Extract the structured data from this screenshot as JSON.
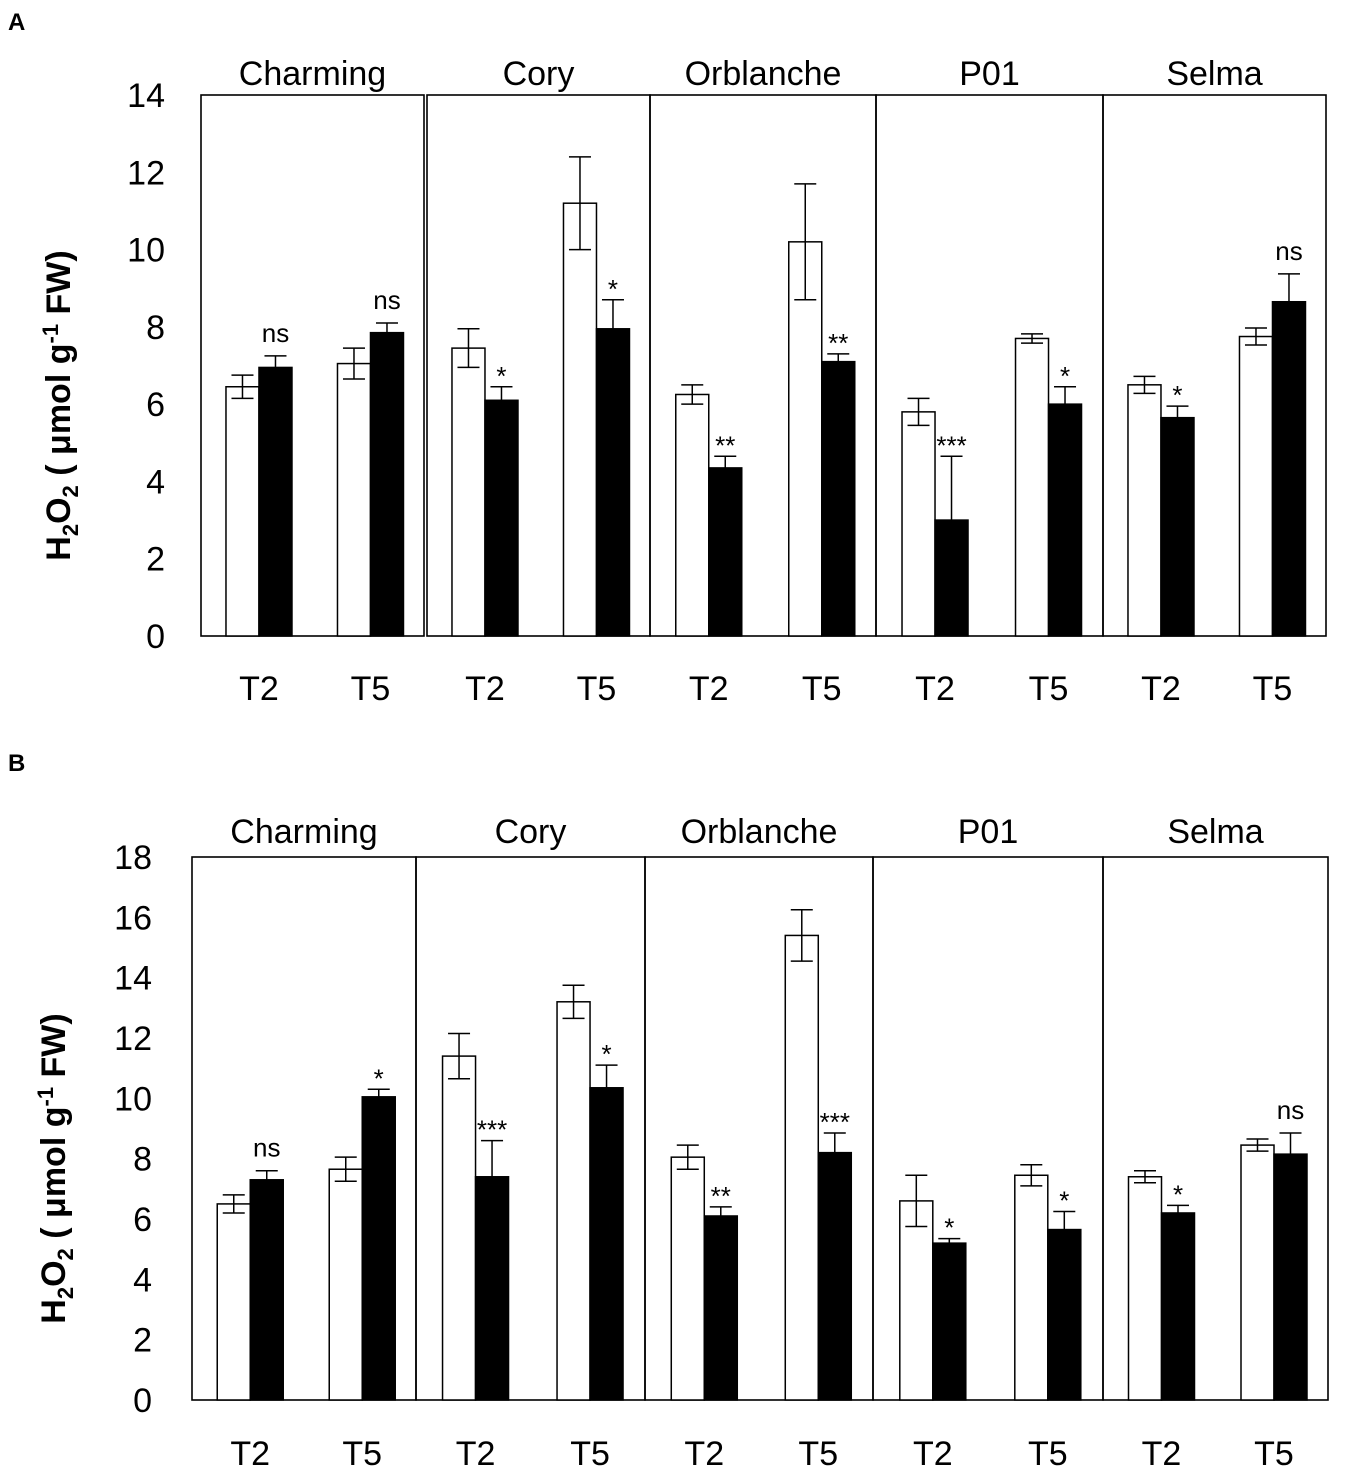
{
  "chart_data": [
    {
      "panel": "A",
      "type": "bar",
      "ylabel_main": "H2O2",
      "ylabel_unit": "( μmol g-1 FW)",
      "ylim": [
        0,
        14
      ],
      "yticks": [
        0,
        2,
        4,
        6,
        8,
        10,
        12,
        14
      ],
      "grid": false,
      "groups": [
        {
          "variety": "Charming",
          "timepoints": [
            {
              "label": "T2",
              "white": 6.45,
              "white_err": 0.3,
              "black": 6.95,
              "black_err": 0.3,
              "sig": "ns"
            },
            {
              "label": "T5",
              "white": 7.05,
              "white_err": 0.4,
              "black": 7.85,
              "black_err": 0.25,
              "sig": "ns"
            }
          ]
        },
        {
          "variety": "Cory",
          "timepoints": [
            {
              "label": "T2",
              "white": 7.45,
              "white_err": 0.5,
              "black": 6.1,
              "black_err": 0.35,
              "sig": "*"
            },
            {
              "label": "T5",
              "white": 11.2,
              "white_err": 1.2,
              "black": 7.95,
              "black_err": 0.75,
              "sig": "*"
            }
          ]
        },
        {
          "variety": "Orblanche",
          "timepoints": [
            {
              "label": "T2",
              "white": 6.25,
              "white_err": 0.25,
              "black": 4.35,
              "black_err": 0.3,
              "sig": "**"
            },
            {
              "label": "T5",
              "white": 10.2,
              "white_err": 1.5,
              "black": 7.1,
              "black_err": 0.2,
              "sig": "**"
            }
          ]
        },
        {
          "variety": "P01",
          "timepoints": [
            {
              "label": "T2",
              "white": 5.8,
              "white_err": 0.35,
              "black": 3.0,
              "black_err": 1.65,
              "sig": "***"
            },
            {
              "label": "T5",
              "white": 7.7,
              "white_err": 0.12,
              "black": 6.0,
              "black_err": 0.45,
              "sig": "*"
            }
          ]
        },
        {
          "variety": "Selma",
          "timepoints": [
            {
              "label": "T2",
              "white": 6.5,
              "white_err": 0.22,
              "black": 5.65,
              "black_err": 0.3,
              "sig": "*"
            },
            {
              "label": "T5",
              "white": 7.75,
              "white_err": 0.22,
              "black": 8.65,
              "black_err": 0.72,
              "sig": "ns"
            }
          ]
        }
      ]
    },
    {
      "panel": "B",
      "type": "bar",
      "ylabel_main": "H2O2",
      "ylabel_unit": "( μmol g-1 FW)",
      "ylim": [
        0,
        18
      ],
      "yticks": [
        0,
        2,
        4,
        6,
        8,
        10,
        12,
        14,
        16,
        18
      ],
      "grid": false,
      "groups": [
        {
          "variety": "Charming",
          "timepoints": [
            {
              "label": "T2",
              "white": 6.5,
              "white_err": 0.3,
              "black": 7.3,
              "black_err": 0.3,
              "sig": "ns"
            },
            {
              "label": "T5",
              "white": 7.65,
              "white_err": 0.4,
              "black": 10.05,
              "black_err": 0.25,
              "sig": "*"
            }
          ]
        },
        {
          "variety": "Cory",
          "timepoints": [
            {
              "label": "T2",
              "white": 11.4,
              "white_err": 0.75,
              "black": 7.4,
              "black_err": 1.2,
              "sig": "***"
            },
            {
              "label": "T5",
              "white": 13.2,
              "white_err": 0.55,
              "black": 10.35,
              "black_err": 0.75,
              "sig": "*"
            }
          ]
        },
        {
          "variety": "Orblanche",
          "timepoints": [
            {
              "label": "T2",
              "white": 8.05,
              "white_err": 0.4,
              "black": 6.1,
              "black_err": 0.3,
              "sig": "**"
            },
            {
              "label": "T5",
              "white": 15.4,
              "white_err": 0.85,
              "black": 8.2,
              "black_err": 0.65,
              "sig": "***"
            }
          ]
        },
        {
          "variety": "P01",
          "timepoints": [
            {
              "label": "T2",
              "white": 6.6,
              "white_err": 0.85,
              "black": 5.2,
              "black_err": 0.15,
              "sig": "*"
            },
            {
              "label": "T5",
              "white": 7.45,
              "white_err": 0.35,
              "black": 5.65,
              "black_err": 0.6,
              "sig": "*"
            }
          ]
        },
        {
          "variety": "Selma",
          "timepoints": [
            {
              "label": "T2",
              "white": 7.4,
              "white_err": 0.2,
              "black": 6.2,
              "black_err": 0.25,
              "sig": "*"
            },
            {
              "label": "T5",
              "white": 8.45,
              "white_err": 0.2,
              "black": 8.15,
              "black_err": 0.7,
              "sig": "ns"
            }
          ]
        }
      ]
    }
  ]
}
